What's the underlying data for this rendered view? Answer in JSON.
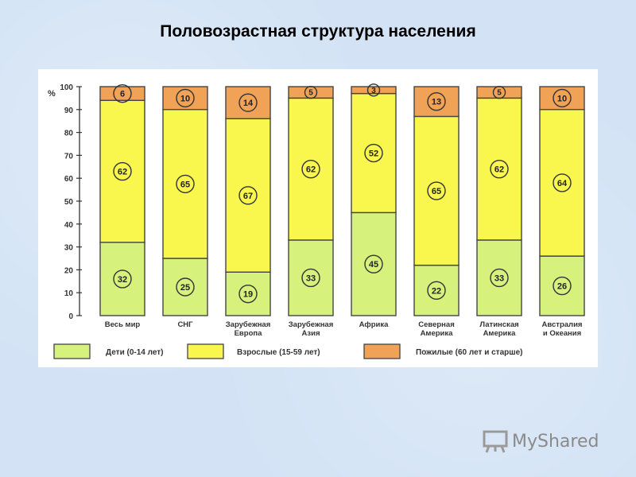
{
  "slide": {
    "title": "Половозрастная структура населения"
  },
  "chart_data": {
    "type": "bar",
    "stacked": true,
    "ylabel": "%",
    "ylim": [
      0,
      100
    ],
    "yticks": [
      0,
      10,
      20,
      30,
      40,
      50,
      60,
      70,
      80,
      90,
      100
    ],
    "categories": [
      [
        "Весь мир"
      ],
      [
        "СНГ"
      ],
      [
        "Зарубежная",
        "Европа"
      ],
      [
        "Зарубежная",
        "Азия"
      ],
      [
        "Африка"
      ],
      [
        "Северная",
        "Америка"
      ],
      [
        "Латинская",
        "Америка"
      ],
      [
        "Австралия",
        "и Океания"
      ]
    ],
    "series": [
      {
        "name": "Дети (0-14 лет)",
        "color": "#d6f27d",
        "values": [
          32,
          25,
          19,
          33,
          45,
          22,
          33,
          26
        ]
      },
      {
        "name": "Взрослые (15-59 лет)",
        "color": "#f9f74e",
        "values": [
          62,
          65,
          67,
          62,
          52,
          65,
          62,
          64
        ]
      },
      {
        "name": "Пожилые (60 лет и старше)",
        "color": "#f0a256",
        "values": [
          6,
          10,
          14,
          5,
          3,
          13,
          5,
          10
        ]
      }
    ],
    "legend_position": "bottom"
  },
  "watermark": {
    "text": "MyShared",
    "icon": "presentation-board-icon"
  }
}
